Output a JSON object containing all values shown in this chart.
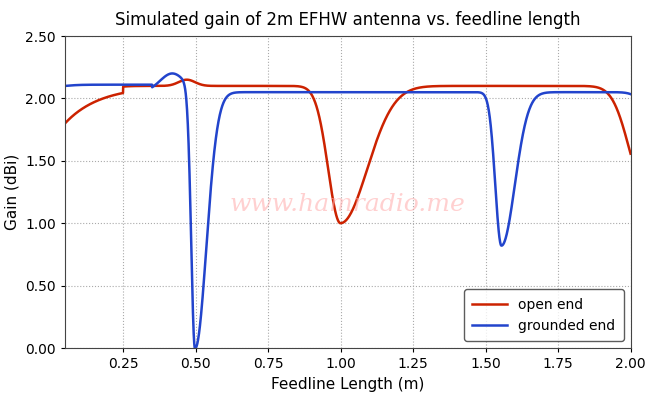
{
  "title": "Simulated gain of 2m EFHW antenna vs. feedline length",
  "xlabel": "Feedline Length (m)",
  "ylabel": "Gain (dBi)",
  "xlim": [
    0.05,
    2.0
  ],
  "ylim": [
    0.0,
    2.5
  ],
  "yticks": [
    0.0,
    0.5,
    1.0,
    1.5,
    2.0,
    2.5
  ],
  "xticks": [
    0.25,
    0.5,
    0.75,
    1.0,
    1.25,
    1.5,
    1.75,
    2.0
  ],
  "red_color": "#cc2200",
  "blue_color": "#2244cc",
  "watermark": "www.hamradio.me",
  "legend_labels": [
    "open end",
    "grounded end"
  ],
  "background_color": "#ffffff",
  "grid_color": "#aaaaaa"
}
